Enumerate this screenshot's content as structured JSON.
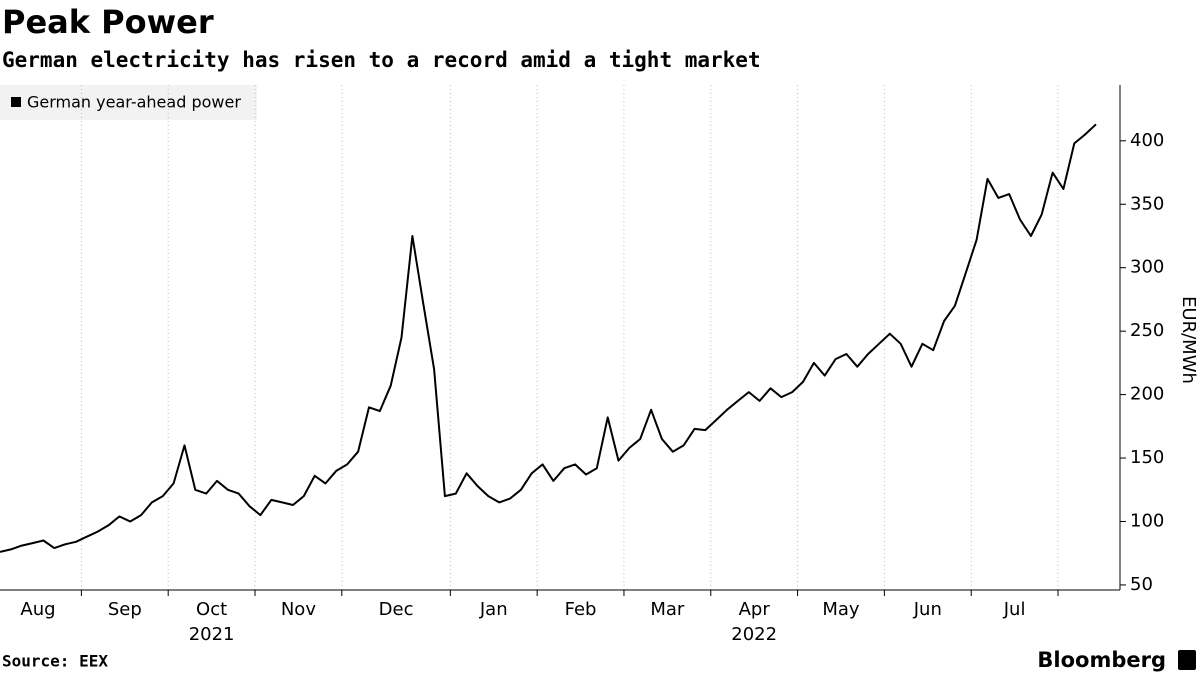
{
  "chart_data": {
    "type": "line",
    "title": "Peak Power",
    "subtitle": "German electricity has risen to a record amid a tight market",
    "source": "Source: EEX",
    "brand": "Bloomberg",
    "y_label": "EUR/MWh",
    "categories": [
      "Aug",
      "Aug",
      "Aug",
      "Aug",
      "Aug",
      "Aug",
      "Aug",
      "Aug",
      "Sep",
      "Sep",
      "Sep",
      "Sep",
      "Sep",
      "Sep",
      "Sep",
      "Sep",
      "Oct",
      "Oct",
      "Oct",
      "Oct",
      "Oct",
      "Oct",
      "Oct",
      "Oct",
      "Nov",
      "Nov",
      "Nov",
      "Nov",
      "Nov",
      "Nov",
      "Nov",
      "Nov",
      "Dec",
      "Dec",
      "Dec",
      "Dec",
      "Dec",
      "Dec",
      "Dec",
      "Dec",
      "Dec",
      "Dec",
      "Jan",
      "Jan",
      "Jan",
      "Jan",
      "Jan",
      "Jan",
      "Jan",
      "Jan",
      "Feb",
      "Feb",
      "Feb",
      "Feb",
      "Feb",
      "Feb",
      "Feb",
      "Feb",
      "Mar",
      "Mar",
      "Mar",
      "Mar",
      "Mar",
      "Mar",
      "Mar",
      "Mar",
      "Apr",
      "Apr",
      "Apr",
      "Apr",
      "Apr",
      "Apr",
      "Apr",
      "Apr",
      "May",
      "May",
      "May",
      "May",
      "May",
      "May",
      "May",
      "May",
      "Jun",
      "Jun",
      "Jun",
      "Jun",
      "Jun",
      "Jun",
      "Jun",
      "Jun",
      "Jul",
      "Jul",
      "Jul",
      "Jul",
      "Jul",
      "Jul",
      "Jul",
      "Jul",
      null,
      null,
      null,
      null
    ],
    "x_groups": [
      {
        "label": "2021",
        "at": "Oct"
      },
      {
        "label": "2022",
        "at": "Apr"
      }
    ],
    "series": [
      {
        "name": "German year-ahead power",
        "color": "#000000",
        "values": [
          76,
          78,
          81,
          83,
          85,
          79,
          82,
          84,
          88,
          92,
          97,
          104,
          100,
          105,
          115,
          120,
          130,
          160,
          125,
          122,
          132,
          125,
          122,
          112,
          105,
          117,
          115,
          113,
          120,
          136,
          130,
          140,
          145,
          155,
          190,
          187,
          207,
          245,
          325,
          272,
          220,
          120,
          122,
          138,
          128,
          120,
          115,
          118,
          125,
          138,
          145,
          132,
          142,
          145,
          137,
          142,
          182,
          148,
          158,
          165,
          188,
          165,
          155,
          160,
          173,
          172,
          180,
          188,
          195,
          202,
          195,
          205,
          198,
          202,
          210,
          225,
          215,
          228,
          232,
          222,
          232,
          240,
          248,
          240,
          222,
          240,
          235,
          258,
          270,
          296,
          322,
          370,
          355,
          358,
          338,
          325,
          342,
          375,
          362,
          398,
          405,
          413
        ]
      }
    ],
    "ylim": [
      46,
      444
    ],
    "yticks": [
      50,
      100,
      150,
      200,
      250,
      300,
      350,
      400
    ]
  }
}
